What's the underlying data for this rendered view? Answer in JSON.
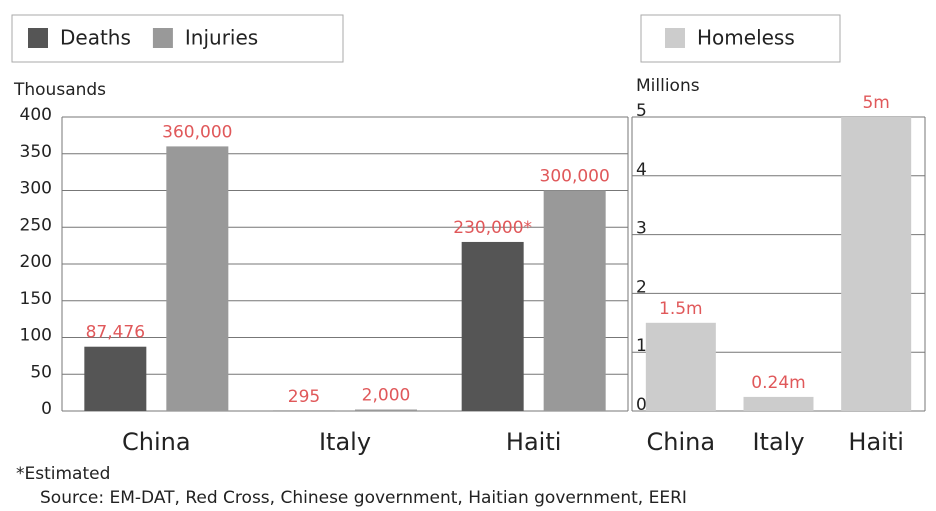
{
  "chart_data": [
    {
      "type": "bar",
      "y_label": "Thousands",
      "categories": [
        "China",
        "Italy",
        "Haiti"
      ],
      "series": [
        {
          "name": "Deaths",
          "color": "#555555",
          "values": [
            87.476,
            0.295,
            230
          ],
          "value_labels": [
            "87,476",
            "295",
            "230,000*"
          ]
        },
        {
          "name": "Injuries",
          "color": "#999999",
          "values": [
            360,
            2,
            300
          ],
          "value_labels": [
            "360,000",
            "2,000",
            "300,000"
          ]
        }
      ],
      "ylim": [
        0,
        400
      ],
      "yticks": [
        0,
        50,
        100,
        150,
        200,
        250,
        300,
        350,
        400
      ],
      "grid": true
    },
    {
      "type": "bar",
      "y_label": "Millions",
      "categories": [
        "China",
        "Italy",
        "Haiti"
      ],
      "series": [
        {
          "name": "Homeless",
          "color": "#cccccc",
          "values": [
            1.5,
            0.24,
            5
          ],
          "value_labels": [
            "1.5m",
            "0.24m",
            "5m"
          ]
        }
      ],
      "ylim": [
        0,
        5
      ],
      "yticks": [
        0,
        1,
        2,
        3,
        4,
        5
      ],
      "grid": true
    }
  ],
  "footnote": "*Estimated",
  "source": "Source: EM-DAT, Red Cross, Chinese government, Haitian government, EERI"
}
